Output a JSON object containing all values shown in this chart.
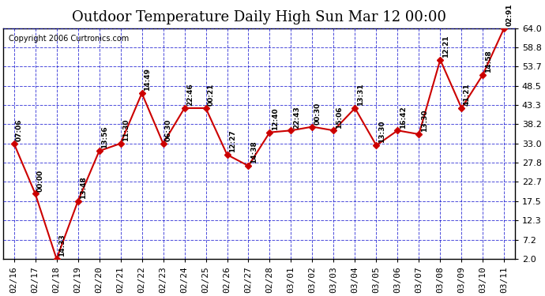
{
  "title": "Outdoor Temperature Daily High Sun Mar 12 00:00",
  "copyright": "Copyright 2006 Curtronics.com",
  "x_labels": [
    "02/16",
    "02/17",
    "02/18",
    "02/19",
    "02/20",
    "02/21",
    "02/22",
    "02/23",
    "02/24",
    "02/25",
    "02/26",
    "02/27",
    "02/28",
    "03/01",
    "03/02",
    "03/03",
    "03/04",
    "03/05",
    "03/06",
    "03/07",
    "03/08",
    "03/09",
    "03/10",
    "03/11"
  ],
  "y_values": [
    33.0,
    19.5,
    2.0,
    17.5,
    31.0,
    33.0,
    46.5,
    33.0,
    42.5,
    42.5,
    30.0,
    27.0,
    36.0,
    36.5,
    37.5,
    36.5,
    42.5,
    32.5,
    36.5,
    35.5,
    55.5,
    42.5,
    51.5,
    64.0
  ],
  "point_labels": [
    "07:06",
    "00:00",
    "14:33",
    "13:48",
    "13:56",
    "11:30",
    "14:49",
    "06:30",
    "22:46",
    "00:21",
    "12:27",
    "14:38",
    "12:40",
    "22:43",
    "00:30",
    "15:06",
    "13:31",
    "13:30",
    "16:42",
    "13:30",
    "12:21",
    "41:21",
    "14:58",
    "02:91"
  ],
  "y_ticks": [
    2.0,
    7.2,
    12.3,
    17.5,
    22.7,
    27.8,
    33.0,
    38.2,
    43.3,
    48.5,
    53.7,
    58.8,
    64.0
  ],
  "y_min": 2.0,
  "y_max": 64.0,
  "line_color": "#cc0000",
  "marker_color": "#cc0000",
  "bg_color": "#ffffff",
  "plot_bg_color": "#ffffff",
  "grid_color": "#0000cc",
  "title_fontsize": 13,
  "label_fontsize": 7.5,
  "tick_fontsize": 8,
  "copyright_fontsize": 7
}
